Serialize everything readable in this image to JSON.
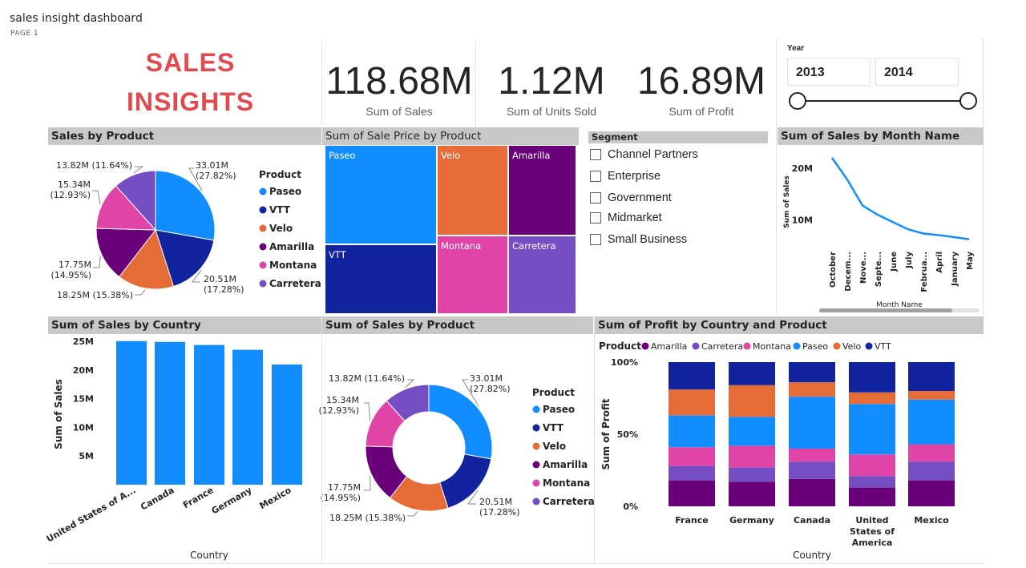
{
  "report": {
    "title": "sales insight dashboard",
    "page": "PAGE 1"
  },
  "brand": {
    "line1": "SALES",
    "line2": "INSIGHTS",
    "color": "#e04a50"
  },
  "kpis": [
    {
      "value": "118.68M",
      "label": "Sum of  Sales"
    },
    {
      "value": "1.12M",
      "label": "Sum of Units Sold"
    },
    {
      "value": "16.89M",
      "label": "Sum of Profit"
    }
  ],
  "year_slicer": {
    "label": "Year",
    "start": "2013",
    "end": "2014"
  },
  "segment": {
    "title": "Segment",
    "items": [
      "Channel Partners",
      "Enterprise",
      "Government",
      "Midmarket",
      "Small Business"
    ]
  },
  "colors": {
    "Paseo": "#118dff",
    "VTT": "#12239e",
    "Velo": "#e66c37",
    "Amarilla": "#6b007b",
    "Montana": "#e044a7",
    "Carretera": "#744ec2"
  },
  "chart_data": [
    {
      "id": "sales-by-product-pie",
      "type": "pie",
      "title": "Sales by Product",
      "legend_title": "Product",
      "legend_position": "right",
      "slices": [
        {
          "name": "Paseo",
          "value": 33.01,
          "label": "33.01M (27.82%)",
          "label_lines": [
            "33.01M",
            "(27.82%)"
          ]
        },
        {
          "name": "VTT",
          "value": 20.51,
          "label": "20.51M (17.28%)",
          "label_lines": [
            "20.51M",
            "(17.28%)"
          ]
        },
        {
          "name": "Velo",
          "value": 18.25,
          "label": "18.25M (15.38%)",
          "label_lines": [
            "18.25M (15.38%)"
          ]
        },
        {
          "name": "Amarilla",
          "value": 17.75,
          "label": "17.75M (14.95%)",
          "label_lines": [
            "17.75M",
            "(14.95%)"
          ]
        },
        {
          "name": "Montana",
          "value": 15.34,
          "label": "15.34M (12.93%)",
          "label_lines": [
            "15.34M",
            "(12.93%)"
          ]
        },
        {
          "name": "Carretera",
          "value": 13.82,
          "label": "13.82M (11.64%)",
          "label_lines": [
            "13.82M (11.64%)"
          ]
        }
      ]
    },
    {
      "id": "sale-price-treemap",
      "type": "treemap",
      "title": "Sum of Sale Price by Product",
      "tiles": [
        "Paseo",
        "VTT",
        "Velo",
        "Montana",
        "Amarilla",
        "Carretera"
      ]
    },
    {
      "id": "sales-by-month-line",
      "type": "line",
      "title": "Sum of Sales by Month Name",
      "xlabel": "Month Name",
      "ylabel": "Sum of Sales",
      "x": [
        "October",
        "Decem...",
        "Nove...",
        "Septe...",
        "June",
        "July",
        "Februa...",
        "April",
        "January",
        "May"
      ],
      "y": [
        22.0,
        17.8,
        12.8,
        11.0,
        9.6,
        8.2,
        7.4,
        7.1,
        6.7,
        6.3
      ],
      "yticks": [
        {
          "v": 10,
          "label": "10M"
        },
        {
          "v": 20,
          "label": "20M"
        }
      ],
      "ylim": [
        3,
        24
      ]
    },
    {
      "id": "sales-by-country-bar",
      "type": "bar",
      "title": "Sum of Sales by Country",
      "xlabel": "Country",
      "ylabel": "Sum of Sales",
      "categories": [
        "United States of A...",
        "Canada",
        "France",
        "Germany",
        "Mexico"
      ],
      "values": [
        25.03,
        24.89,
        24.35,
        23.51,
        20.95
      ],
      "yticks": [
        {
          "v": 5,
          "label": "5M"
        },
        {
          "v": 10,
          "label": "10M"
        },
        {
          "v": 15,
          "label": "15M"
        },
        {
          "v": 20,
          "label": "20M"
        },
        {
          "v": 25,
          "label": "25M"
        }
      ],
      "ylim": [
        0,
        25
      ]
    },
    {
      "id": "sales-by-product-donut",
      "type": "pie",
      "title": "Sum of Sales by Product",
      "legend_title": "Product",
      "legend_position": "right",
      "slices": [
        {
          "name": "Paseo",
          "value": 33.01,
          "label": "33.01M (27.82%)",
          "label_lines": [
            "33.01M",
            "(27.82%)"
          ]
        },
        {
          "name": "VTT",
          "value": 20.51,
          "label": "20.51M (17.28%)",
          "label_lines": [
            "20.51M",
            "(17.28%)"
          ]
        },
        {
          "name": "Velo",
          "value": 18.25,
          "label": "18.25M (15.38%)",
          "label_lines": [
            "18.25M (15.38%)"
          ]
        },
        {
          "name": "Amarilla",
          "value": 17.75,
          "label": "17.75M (14.95%)",
          "label_lines": [
            "17.75M",
            "(14.95%)"
          ]
        },
        {
          "name": "Montana",
          "value": 15.34,
          "label": "15.34M (12.93%)",
          "label_lines": [
            "15.34M",
            "(12.93%)"
          ]
        },
        {
          "name": "Carretera",
          "value": 13.82,
          "label": "13.82M (11.64%)",
          "label_lines": [
            "13.82M (11.64%)"
          ]
        }
      ]
    },
    {
      "id": "profit-by-country-product-stacked",
      "type": "bar",
      "stacked": "100%",
      "title": "Sum of Profit by Country and Product",
      "legend_title": "Product",
      "legend_position": "top-left",
      "xlabel": "Country",
      "ylabel": "Sum of Profit",
      "categories": [
        "France",
        "Germany",
        "Canada",
        "United States of America",
        "Mexico"
      ],
      "category_lines": [
        [
          "France"
        ],
        [
          "Germany"
        ],
        [
          "Canada"
        ],
        [
          "United",
          "States of",
          "America"
        ],
        [
          "Mexico"
        ]
      ],
      "yticks": [
        {
          "v": 0,
          "label": "0%"
        },
        {
          "v": 50,
          "label": "50%"
        },
        {
          "v": 100,
          "label": "100%"
        }
      ],
      "series": [
        {
          "name": "Amarilla",
          "values": [
            18,
            17,
            19,
            13,
            18
          ]
        },
        {
          "name": "Carretera",
          "values": [
            10,
            10,
            12,
            8,
            13
          ]
        },
        {
          "name": "Montana",
          "values": [
            13,
            15,
            9,
            15,
            12
          ]
        },
        {
          "name": "Paseo",
          "values": [
            22,
            20,
            36,
            35,
            31
          ]
        },
        {
          "name": "Velo",
          "values": [
            18,
            22,
            10,
            8,
            6
          ]
        },
        {
          "name": "VTT",
          "values": [
            19,
            16,
            14,
            21,
            20
          ]
        }
      ]
    }
  ]
}
